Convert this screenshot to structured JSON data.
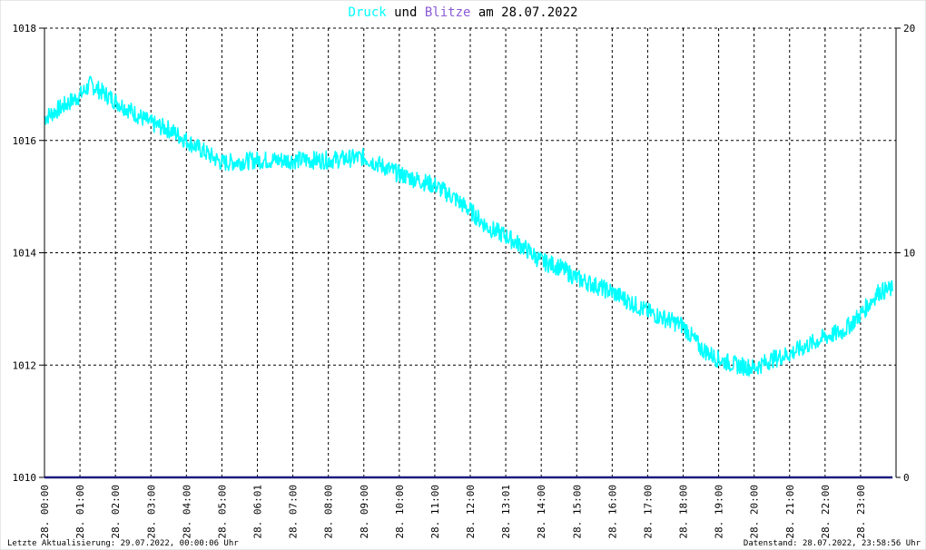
{
  "chart_data": {
    "type": "line",
    "title": {
      "word1": "Druck",
      "word2": "und",
      "word3": "Blitze",
      "word4": "am 28.07.2022"
    },
    "colors": {
      "druck": "#00ffff",
      "blitze": "#8a5ad6",
      "blitze_line": "#1a1a80",
      "grid": "#000000"
    },
    "xlabel": "",
    "ylabel": "",
    "ylim_left": [
      1010,
      1018
    ],
    "ylim_right": [
      0,
      20
    ],
    "left_ticks": [
      "1010",
      "1012",
      "1014",
      "1016",
      "1018"
    ],
    "right_ticks": [
      "0",
      "10",
      "20"
    ],
    "x_tick_labels": [
      "28. 00:00",
      "28. 01:00",
      "28. 02:00",
      "28. 03:00",
      "28. 04:00",
      "28. 05:00",
      "28. 06:01",
      "28. 07:00",
      "28. 08:00",
      "28. 09:00",
      "28. 10:00",
      "28. 11:00",
      "28. 12:00",
      "28. 13:01",
      "28. 14:00",
      "28. 15:00",
      "28. 16:00",
      "28. 17:00",
      "28. 18:00",
      "28. 19:00",
      "28. 20:00",
      "28. 21:00",
      "28. 22:00",
      "28. 23:00"
    ],
    "series": [
      {
        "name": "Druck",
        "axis": "left",
        "x_hours": [
          0,
          0.5,
          1,
          1.3,
          2,
          2.5,
          3,
          3.5,
          4,
          4.5,
          5,
          6,
          7,
          8,
          9,
          9.5,
          10,
          11,
          11.5,
          12,
          12.5,
          13,
          13.5,
          14,
          14.5,
          15,
          16,
          17,
          18,
          18.5,
          19,
          19.5,
          20,
          20.5,
          21,
          22,
          22.5,
          23,
          23.5,
          23.9
        ],
        "values": [
          1016.4,
          1016.6,
          1016.8,
          1017.0,
          1016.7,
          1016.5,
          1016.3,
          1016.2,
          1016.0,
          1015.8,
          1015.6,
          1015.65,
          1015.65,
          1015.65,
          1015.7,
          1015.55,
          1015.4,
          1015.2,
          1015.0,
          1014.75,
          1014.45,
          1014.3,
          1014.1,
          1013.85,
          1013.75,
          1013.55,
          1013.3,
          1012.95,
          1012.7,
          1012.3,
          1012.1,
          1012.0,
          1011.95,
          1012.1,
          1012.2,
          1012.5,
          1012.6,
          1012.9,
          1013.3,
          1013.35
        ]
      },
      {
        "name": "Blitze",
        "axis": "right",
        "x_hours": [
          0,
          23.9
        ],
        "values": [
          0,
          0
        ]
      }
    ],
    "grid": true
  },
  "footer": {
    "left": "Letzte Aktualisierung: 29.07.2022, 00:00:06 Uhr",
    "right": "Datenstand: 28.07.2022, 23:58:56 Uhr"
  }
}
